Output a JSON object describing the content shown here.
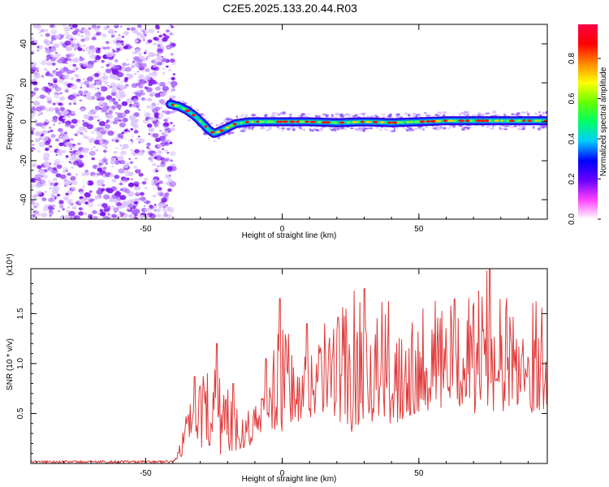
{
  "title": "C2E5.2025.133.20.44.R03",
  "chart_data": [
    {
      "type": "heatmap",
      "xlabel": "Height of straight line (km)",
      "ylabel": "Frequency (Hz)",
      "xlim": [
        -92,
        97
      ],
      "ylim": [
        -50,
        50
      ],
      "xticks": [
        -50,
        0,
        50
      ],
      "yticks": [
        -40,
        -20,
        0,
        20,
        40
      ],
      "colorbar": {
        "label": "Normalized spectral amplitude",
        "range": [
          0.0,
          0.97
        ],
        "ticks": [
          "0.0",
          "0.2",
          "0.4",
          "0.6",
          "0.8"
        ],
        "tick_values": [
          0.0,
          0.2,
          0.4,
          0.6,
          0.8
        ],
        "colors": [
          "#ffffff",
          "#ff40ff",
          "#6600ff",
          "#0000ff",
          "#00ccff",
          "#00ff66",
          "#66ff00",
          "#ffff00",
          "#ff8800",
          "#ff0000",
          "#ff0044"
        ]
      },
      "noise_region_x": [
        -92,
        -41
      ],
      "ridge": {
        "x": [
          -41,
          -38,
          -35,
          -32,
          -29,
          -27,
          -25,
          -23,
          -20,
          -17,
          -12,
          -5,
          0,
          10,
          20,
          30,
          40,
          50,
          60,
          70,
          80,
          90,
          97
        ],
        "y": [
          9,
          8,
          6,
          3,
          -1,
          -4,
          -6,
          -5,
          -3,
          -1,
          0,
          0,
          0,
          0,
          -0.5,
          0,
          -0.5,
          0,
          0.5,
          0.5,
          0.5,
          0.5,
          0.5
        ]
      }
    },
    {
      "type": "line",
      "xlabel": "Height of straight line (km)",
      "ylabel": "SNR (10 * v/v)",
      "yscale_label": "(x10⁴)",
      "xlim": [
        -92,
        97
      ],
      "ylim": [
        0,
        1.95
      ],
      "xticks": [
        -50,
        0,
        50
      ],
      "yticks": [
        0.5,
        1.0,
        1.5
      ],
      "color": "#e03a3a",
      "envelope": {
        "x": [
          -92,
          -40,
          -37,
          -35,
          -30,
          -25,
          -20,
          -15,
          -10,
          -5,
          0,
          5,
          10,
          15,
          20,
          25,
          30,
          35,
          40,
          45,
          50,
          55,
          60,
          65,
          70,
          75,
          80,
          85,
          90,
          97
        ],
        "low": [
          0.0,
          0.0,
          0.05,
          0.2,
          0.12,
          0.1,
          0.08,
          0.15,
          0.2,
          0.35,
          0.3,
          0.35,
          0.45,
          0.5,
          0.45,
          0.3,
          0.45,
          0.4,
          0.35,
          0.45,
          0.5,
          0.55,
          0.5,
          0.55,
          0.5,
          0.55,
          0.5,
          0.55,
          0.5,
          0.55
        ],
        "high": [
          0.03,
          0.04,
          0.3,
          0.55,
          0.8,
          1.2,
          0.8,
          0.55,
          0.6,
          0.9,
          1.65,
          0.95,
          1.3,
          1.4,
          1.6,
          1.75,
          1.7,
          1.6,
          1.65,
          1.6,
          1.7,
          1.65,
          1.7,
          1.65,
          1.7,
          1.95,
          1.7,
          1.65,
          1.7,
          1.6
        ]
      },
      "peaks": [
        {
          "x": -32,
          "y": 0.87
        },
        {
          "x": -24,
          "y": 1.2
        },
        {
          "x": -18,
          "y": 0.8
        },
        {
          "x": -6,
          "y": 1.05
        },
        {
          "x": -1,
          "y": 1.65
        },
        {
          "x": 9,
          "y": 1.4
        },
        {
          "x": 30,
          "y": 1.75
        },
        {
          "x": 76,
          "y": 1.95
        }
      ]
    }
  ]
}
